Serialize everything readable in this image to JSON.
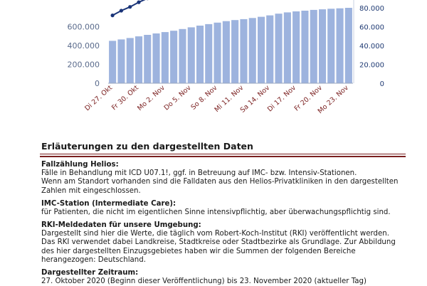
{
  "chart_data": {
    "type": "bar",
    "left_axis_ticks": [
      "0",
      "200.000",
      "400.000",
      "600.000"
    ],
    "right_axis_ticks": [
      "0",
      "20.000",
      "40.000",
      "60.000",
      "80.000"
    ],
    "x_tick_labels": [
      "Di 27. Okt",
      "Fr 30. Okt",
      "Mo 2. Nov",
      "Do 5. Nov",
      "So 8. Nov",
      "Mi 11. Nov",
      "Sa 14. Nov",
      "Di 17. Nov",
      "Fr 20. Nov",
      "Mo 23. Nov"
    ],
    "bar_values": [
      450000,
      465000,
      480000,
      497000,
      513000,
      528000,
      543000,
      557000,
      575000,
      593000,
      611000,
      627000,
      643000,
      659000,
      670000,
      680000,
      692000,
      705000,
      720000,
      738000,
      752000,
      762000,
      770000,
      778000,
      784000,
      790000,
      795000,
      800000
    ],
    "line_values": [
      72000,
      77000,
      81000,
      86000,
      90000
    ],
    "colors": {
      "bar": "#9db3de",
      "line": "#1a3478",
      "axis_text": "#5a6b8c",
      "right_axis_text": "#1f3a73",
      "x_text": "#7a1f1f",
      "grid": "#c8d0e0"
    }
  },
  "section": {
    "heading": "Erläuterungen zu den dargestellten Daten"
  },
  "blocks": [
    {
      "heading": "Fallzählung Helios:",
      "lines": [
        "Fälle in Behandlung mit ICD U07.1!, ggf. in Betreuung auf IMC- bzw. Intensiv-Stationen.",
        "Wenn am Standort vorhanden sind die Falldaten aus den Helios-Privatkliniken in den dargestellten",
        "Zahlen mit eingeschlossen."
      ]
    },
    {
      "heading": "IMC-Station (Intermediate Care):",
      "lines": [
        "für Patienten, die nicht im eigentlichen Sinne intensivpflichtig, aber überwachungspflichtig sind."
      ]
    },
    {
      "heading": "RKI-Meldedaten für unsere Umgebung:",
      "lines": [
        "Dargestellt sind hier die Werte, die täglich vom Robert-Koch-Institut (RKI) veröffentlicht werden.",
        "Das RKI verwendet dabei Landkreise, Stadtkreise oder Stadtbezirke als Grundlage. Zur Abbildung",
        "des hier dargestellten Einzugsgebietes haben wir die Summen der folgenden Bereiche",
        "herangezogen: Deutschland."
      ]
    },
    {
      "heading": "Dargestellter Zeitraum:",
      "lines": [
        "27. Oktober 2020 (Beginn dieser Veröffentlichung) bis 23. November 2020 (aktueller Tag)"
      ]
    }
  ]
}
